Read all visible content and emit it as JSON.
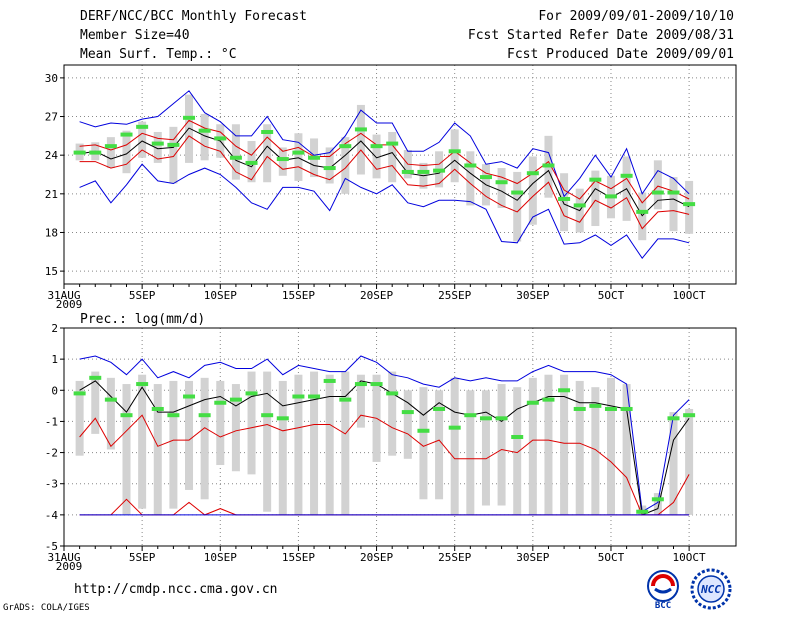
{
  "header": {
    "title": "DERF/NCC/BCC Monthly Forecast",
    "member_size": "Member Size=40",
    "variable": "Mean Surf. Temp.: °C",
    "period": "For 2009/09/01-2009/10/10",
    "started": "Fcst Started Refer Date 2009/08/31",
    "produced": "Fcst Produced Date 2009/09/01"
  },
  "footer": {
    "url": "http://cmdp.ncc.cma.gov.cn",
    "grads": "GrADS: COLA/IGES",
    "logo_bcc": "BCC",
    "logo_ncc": "NCC"
  },
  "colors": {
    "mean": "#000000",
    "max_min": "#0000dd",
    "spread": "#dd0000",
    "box": "#d2d2d2",
    "marker": "#44dd44"
  },
  "chart_data": [
    {
      "type": "line",
      "title": "Mean Surf. Temp.: °C",
      "x_tick_labels": [
        "31AUG",
        "5SEP",
        "10SEP",
        "15SEP",
        "20SEP",
        "25SEP",
        "30SEP",
        "5OCT",
        "10OCT"
      ],
      "x_year_label": "2009",
      "ylim": [
        14,
        31
      ],
      "y_ticks": [
        15,
        18,
        21,
        24,
        27,
        30
      ],
      "x": [
        1,
        2,
        3,
        4,
        5,
        6,
        7,
        8,
        9,
        10,
        11,
        12,
        13,
        14,
        15,
        16,
        17,
        18,
        19,
        20,
        21,
        22,
        23,
        24,
        25,
        26,
        27,
        28,
        29,
        30,
        31,
        32,
        33,
        34,
        35,
        36,
        37,
        38,
        39,
        40
      ],
      "series": [
        {
          "name": "max",
          "color": "#0000dd",
          "values": [
            26.6,
            26.2,
            26.5,
            26.4,
            26.8,
            27.0,
            28.0,
            29.0,
            27.3,
            26.6,
            25.5,
            25.5,
            27.0,
            25.2,
            25.0,
            24.0,
            24.2,
            25.5,
            27.5,
            26.5,
            26.5,
            24.3,
            24.3,
            25.0,
            26.5,
            25.5,
            23.3,
            23.5,
            23.0,
            24.5,
            24.2,
            20.8,
            22.2,
            24.0,
            22.3,
            24.5,
            21.0,
            22.8,
            22.2,
            21.0
          ]
        },
        {
          "name": "spread_upper",
          "color": "#dd0000",
          "values": [
            24.7,
            24.8,
            24.4,
            24.8,
            25.7,
            25.3,
            25.2,
            26.7,
            26.1,
            25.8,
            24.7,
            24.0,
            25.4,
            24.3,
            24.6,
            23.9,
            23.9,
            24.9,
            25.7,
            24.8,
            24.8,
            23.3,
            23.2,
            23.3,
            24.3,
            23.4,
            22.6,
            22.3,
            21.8,
            22.6,
            23.5,
            21.3,
            20.6,
            22.0,
            21.4,
            22.2,
            20.3,
            21.6,
            21.2,
            20.6
          ]
        },
        {
          "name": "mean",
          "color": "#000000",
          "values": [
            24.1,
            24.3,
            23.7,
            24.1,
            25.1,
            24.5,
            24.6,
            26.1,
            25.5,
            25.1,
            23.6,
            23.1,
            24.7,
            23.6,
            23.8,
            23.2,
            23.0,
            24.0,
            25.1,
            23.8,
            24.2,
            22.6,
            22.4,
            22.6,
            23.6,
            22.6,
            21.7,
            21.2,
            20.5,
            21.8,
            22.8,
            20.2,
            19.7,
            21.4,
            20.7,
            21.4,
            19.3,
            20.5,
            20.6,
            20.0
          ]
        },
        {
          "name": "spread_lower",
          "color": "#dd0000",
          "values": [
            23.5,
            23.5,
            23.0,
            23.3,
            24.4,
            23.7,
            23.9,
            25.5,
            24.7,
            24.3,
            22.7,
            22.1,
            23.9,
            22.9,
            23.1,
            22.5,
            22.1,
            23.0,
            24.4,
            22.9,
            23.2,
            21.7,
            21.6,
            21.8,
            22.9,
            21.8,
            20.8,
            20.1,
            19.6,
            20.8,
            21.9,
            19.3,
            18.8,
            20.5,
            19.9,
            20.7,
            18.3,
            19.6,
            19.7,
            19.4
          ]
        },
        {
          "name": "min",
          "color": "#0000dd",
          "values": [
            21.5,
            22.0,
            20.3,
            21.7,
            23.3,
            22.0,
            21.8,
            22.5,
            23.0,
            22.5,
            21.5,
            20.3,
            19.8,
            21.5,
            21.5,
            21.2,
            19.7,
            22.2,
            21.5,
            21.0,
            21.7,
            20.3,
            20.0,
            20.5,
            20.5,
            20.4,
            19.8,
            17.3,
            17.2,
            19.2,
            19.8,
            17.1,
            17.2,
            17.8,
            17.0,
            17.8,
            16.0,
            17.5,
            17.5,
            17.2
          ]
        },
        {
          "name": "box_high",
          "color": "#d2d2d2",
          "values": [
            24.9,
            25.0,
            25.4,
            25.9,
            26.6,
            25.8,
            26.2,
            28.7,
            27.2,
            26.4,
            26.4,
            25.1,
            26.4,
            24.6,
            25.7,
            25.3,
            24.6,
            25.4,
            27.9,
            25.6,
            25.8,
            24.4,
            23.4,
            24.3,
            26.0,
            24.3,
            23.3,
            23.0,
            22.7,
            23.9,
            25.5,
            22.6,
            21.4,
            22.8,
            22.4,
            23.9,
            21.1,
            23.6,
            22.3,
            22.0
          ]
        },
        {
          "name": "box_low",
          "color": "#d2d2d2",
          "values": [
            23.6,
            23.6,
            23.0,
            22.6,
            23.8,
            23.4,
            21.8,
            23.4,
            23.6,
            23.8,
            22.1,
            21.9,
            21.9,
            22.4,
            22.0,
            22.3,
            21.8,
            21.0,
            22.5,
            22.2,
            21.9,
            22.2,
            21.4,
            21.5,
            21.9,
            20.1,
            20.1,
            19.9,
            17.3,
            18.6,
            20.7,
            18.1,
            18.0,
            18.5,
            19.1,
            18.9,
            17.4,
            19.8,
            18.1,
            17.9
          ]
        },
        {
          "name": "median_marker",
          "color": "#44dd44",
          "values": [
            24.2,
            24.2,
            24.7,
            25.6,
            26.2,
            24.9,
            24.8,
            26.9,
            25.9,
            25.3,
            23.8,
            23.4,
            25.8,
            23.7,
            24.2,
            23.8,
            23.0,
            24.7,
            26.0,
            24.7,
            24.9,
            22.7,
            22.7,
            22.8,
            24.3,
            23.2,
            22.3,
            21.9,
            21.1,
            22.6,
            23.2,
            20.6,
            20.1,
            22.1,
            20.8,
            22.4,
            19.6,
            21.1,
            21.1,
            20.2
          ]
        }
      ]
    },
    {
      "type": "line",
      "title": "Prec.: log(mm/d)",
      "x_tick_labels": [
        "31AUG",
        "5SEP",
        "10SEP",
        "15SEP",
        "20SEP",
        "25SEP",
        "30SEP",
        "5OCT",
        "10OCT"
      ],
      "x_year_label": "2009",
      "ylim": [
        -5,
        2
      ],
      "y_ticks": [
        -5,
        -4,
        -3,
        -2,
        -1,
        0,
        1,
        2
      ],
      "x": [
        1,
        2,
        3,
        4,
        5,
        6,
        7,
        8,
        9,
        10,
        11,
        12,
        13,
        14,
        15,
        16,
        17,
        18,
        19,
        20,
        21,
        22,
        23,
        24,
        25,
        26,
        27,
        28,
        29,
        30,
        31,
        32,
        33,
        34,
        35,
        36,
        37,
        38,
        39,
        40
      ],
      "series": [
        {
          "name": "max",
          "color": "#0000dd",
          "values": [
            1.0,
            1.1,
            0.9,
            0.5,
            1.0,
            0.4,
            0.6,
            0.4,
            0.8,
            0.9,
            0.7,
            0.7,
            1.0,
            0.5,
            0.8,
            0.7,
            0.6,
            0.6,
            1.1,
            0.9,
            0.5,
            0.4,
            0.2,
            0.1,
            0.4,
            0.3,
            0.4,
            0.3,
            0.3,
            0.6,
            0.8,
            0.6,
            0.6,
            0.6,
            0.5,
            0.2,
            -3.9,
            -3.6,
            -0.8,
            -0.3
          ]
        },
        {
          "name": "mean",
          "color": "#000000",
          "values": [
            0.0,
            0.3,
            -0.2,
            -0.7,
            0.1,
            -0.7,
            -0.7,
            -0.5,
            -0.3,
            -0.2,
            -0.5,
            -0.2,
            -0.1,
            -0.5,
            -0.4,
            -0.3,
            -0.2,
            -0.2,
            0.3,
            0.2,
            -0.1,
            -0.4,
            -0.8,
            -0.4,
            -0.7,
            -0.8,
            -0.7,
            -1.0,
            -0.6,
            -0.4,
            -0.2,
            -0.2,
            -0.4,
            -0.4,
            -0.5,
            -0.6,
            -4.0,
            -3.8,
            -1.6,
            -0.9
          ]
        },
        {
          "name": "spread_upper_curve",
          "color": "#dd0000",
          "values": [
            -1.5,
            -0.9,
            -1.8,
            -1.3,
            -0.8,
            -1.8,
            -1.6,
            -1.6,
            -1.2,
            -1.5,
            -1.3,
            -1.2,
            -1.1,
            -1.3,
            -1.2,
            -1.1,
            -1.1,
            -1.4,
            -0.8,
            -0.9,
            -1.2,
            -1.4,
            -1.8,
            -1.6,
            -2.2,
            -2.2,
            -2.2,
            -1.9,
            -2.0,
            -1.6,
            -1.6,
            -1.7,
            -1.7,
            -1.9,
            -2.3,
            -2.8,
            -4.0,
            -4.0,
            -3.6,
            -2.7
          ]
        },
        {
          "name": "spread_lower_curve",
          "color": "#dd0000",
          "values": [
            -4.0,
            -4.0,
            -4.0,
            -3.5,
            -4.0,
            -4.0,
            -4.0,
            -3.6,
            -4.0,
            -3.8,
            -4.0,
            -4.0,
            -4.0,
            -4.0,
            -4.0,
            -4.0,
            -4.0,
            -4.0,
            -4.0,
            -4.0,
            -4.0,
            -4.0,
            -4.0,
            -4.0,
            -4.0,
            -4.0,
            -4.0,
            -4.0,
            -4.0,
            -4.0,
            -4.0,
            -4.0,
            -4.0,
            -4.0,
            -4.0,
            -4.0,
            -4.0,
            -4.0,
            -4.0,
            -4.0
          ]
        },
        {
          "name": "min",
          "color": "#0000dd",
          "values": [
            -4.0,
            -4.0,
            -4.0,
            -4.0,
            -4.0,
            -4.0,
            -4.0,
            -4.0,
            -4.0,
            -4.0,
            -4.0,
            -4.0,
            -4.0,
            -4.0,
            -4.0,
            -4.0,
            -4.0,
            -4.0,
            -4.0,
            -4.0,
            -4.0,
            -4.0,
            -4.0,
            -4.0,
            -4.0,
            -4.0,
            -4.0,
            -4.0,
            -4.0,
            -4.0,
            -4.0,
            -4.0,
            -4.0,
            -4.0,
            -4.0,
            -4.0,
            -4.0,
            -4.0,
            -4.0,
            -4.0
          ]
        },
        {
          "name": "box_high",
          "color": "#d2d2d2",
          "values": [
            0.3,
            0.6,
            0.4,
            0.2,
            0.5,
            0.2,
            0.3,
            0.3,
            0.4,
            0.3,
            0.2,
            0.6,
            0.6,
            0.3,
            0.5,
            0.6,
            0.5,
            0.6,
            0.5,
            0.5,
            0.6,
            0.0,
            0.1,
            0.0,
            0.4,
            0.0,
            0.0,
            0.2,
            0.1,
            0.4,
            0.5,
            0.5,
            0.3,
            0.1,
            0.4,
            0.2,
            -3.7,
            -3.3,
            -0.7,
            -0.6
          ]
        },
        {
          "name": "box_low",
          "color": "#d2d2d2",
          "values": [
            -2.1,
            -1.4,
            -1.9,
            -4.0,
            -3.8,
            -4.0,
            -3.8,
            -3.2,
            -3.5,
            -2.4,
            -2.6,
            -2.7,
            -3.9,
            -4.0,
            -4.0,
            -4.0,
            -4.0,
            -4.0,
            -1.2,
            -2.3,
            -2.1,
            -2.2,
            -3.5,
            -3.5,
            -4.0,
            -4.0,
            -3.7,
            -3.7,
            -4.0,
            -4.0,
            -4.0,
            -4.0,
            -4.0,
            -4.0,
            -4.0,
            -4.0,
            -4.0,
            -4.0,
            -4.0,
            -4.0
          ]
        },
        {
          "name": "median_marker",
          "color": "#44dd44",
          "values": [
            -0.1,
            0.4,
            -0.3,
            -0.8,
            0.2,
            -0.6,
            -0.8,
            -0.2,
            -0.8,
            -0.4,
            -0.3,
            -0.1,
            -0.8,
            -0.9,
            -0.2,
            -0.2,
            0.3,
            -0.3,
            0.2,
            0.2,
            -0.1,
            -0.7,
            -1.3,
            -0.6,
            -1.2,
            -0.8,
            -0.9,
            -0.9,
            -1.5,
            -0.4,
            -0.3,
            0.0,
            -0.6,
            -0.5,
            -0.6,
            -0.6,
            -3.9,
            -3.5,
            -0.9,
            -0.8
          ]
        }
      ]
    }
  ]
}
